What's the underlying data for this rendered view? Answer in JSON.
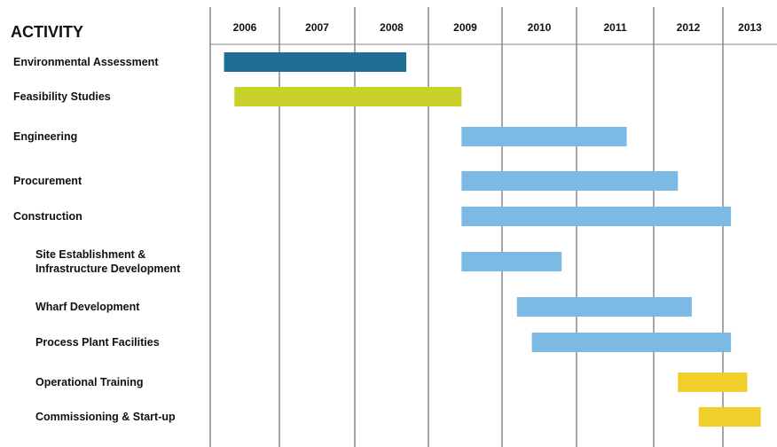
{
  "chart_data": {
    "type": "gantt",
    "title": "",
    "header": "ACTIVITY",
    "years": [
      "2006",
      "2007",
      "2008",
      "2009",
      "2010",
      "2011",
      "2012",
      "2013"
    ],
    "tasks": [
      {
        "label": "Environmental Assessment",
        "start": 2006.2,
        "end": 2008.7,
        "color": "#1f6f94",
        "indent": false
      },
      {
        "label": "Feasibility Studies",
        "start": 2006.35,
        "end": 2009.45,
        "color": "#c9d22b",
        "indent": false
      },
      {
        "label": "Engineering",
        "start": 2009.45,
        "end": 2011.65,
        "color": "#7db9e5",
        "indent": false
      },
      {
        "label": "Procurement",
        "start": 2009.45,
        "end": 2012.35,
        "color": "#7db9e5",
        "indent": false
      },
      {
        "label": "Construction",
        "start": 2009.45,
        "end": 2013.15,
        "color": "#7db9e5",
        "indent": false
      },
      {
        "label": "Site Establishment &\nInfrastructure Development",
        "start": 2009.45,
        "end": 2010.8,
        "color": "#7db9e5",
        "indent": true
      },
      {
        "label": "Wharf Development",
        "start": 2010.2,
        "end": 2012.55,
        "color": "#7db9e5",
        "indent": true
      },
      {
        "label": "Process Plant Facilities",
        "start": 2010.4,
        "end": 2013.15,
        "color": "#7db9e5",
        "indent": true
      },
      {
        "label": "Operational Training",
        "start": 2012.35,
        "end": 2013.45,
        "color": "#f0cf2a",
        "indent": true
      },
      {
        "label": "Commissioning & Start-up",
        "start": 2012.65,
        "end": 2013.7,
        "color": "#f0cf2a",
        "indent": true
      }
    ]
  }
}
